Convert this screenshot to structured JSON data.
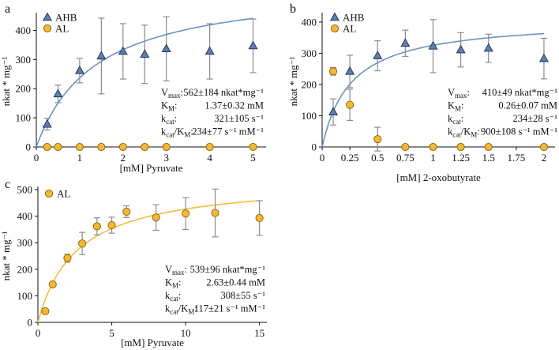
{
  "colors": {
    "ahb_fill": "#5b7fb0",
    "ahb_stroke": "#1f2d45",
    "al_fill": "#f4b934",
    "al_stroke": "#8a5e06",
    "ahb_curve": "#6a93c4",
    "al_curve": "#f1be3c",
    "error_bar": "#8c8c8c",
    "axis": "#111111"
  },
  "chart_data": [
    {
      "panel": "a",
      "type": "scatter",
      "xlabel": "[mM] Pyruvate",
      "ylabel": "nkat * mg⁻¹",
      "xlim": [
        0,
        5.3
      ],
      "ylim": [
        0,
        450
      ],
      "xticks": [
        0,
        1,
        2,
        3,
        4,
        5
      ],
      "yticks": [
        0,
        100,
        200,
        300,
        400
      ],
      "xtick_labels": [
        "0",
        "1",
        "2",
        "3",
        "4",
        "5"
      ],
      "ytick_labels": [
        "0",
        "100",
        "200",
        "300",
        "400"
      ],
      "legend": [
        "AHB",
        "AL"
      ],
      "series": [
        {
          "name": "AHB",
          "marker": "triangle",
          "x": [
            0.25,
            0.5,
            1.0,
            1.5,
            2.0,
            2.5,
            3.0,
            4.0,
            5.0
          ],
          "y": [
            78,
            182,
            262,
            312,
            328,
            318,
            337,
            328,
            347
          ],
          "err": [
            20,
            30,
            42,
            130,
            95,
            100,
            110,
            95,
            92
          ],
          "fit": {
            "vmax": 562,
            "km": 1.37
          }
        },
        {
          "name": "AL",
          "marker": "circle",
          "x": [
            0.25,
            0.5,
            1.0,
            1.5,
            2.0,
            2.5,
            3.0,
            4.0,
            5.0
          ],
          "y": [
            0,
            0,
            0,
            0,
            0,
            0,
            0,
            0,
            0
          ],
          "err": [
            0,
            0,
            0,
            0,
            0,
            0,
            0,
            0,
            0
          ]
        }
      ],
      "annotations": [
        {
          "label": "V",
          "sub": "max",
          "value": "562±184 nkat*mg⁻¹"
        },
        {
          "label": "K",
          "sub": "M",
          "value": "1.37±0.32 mM"
        },
        {
          "label": "k",
          "sub": "cat",
          "value": "321±105 s⁻¹"
        },
        {
          "label": "k",
          "sub": "cat",
          "label2": "/K",
          "sub2": "M",
          "value": "234±77 s⁻¹ mM⁻¹"
        }
      ]
    },
    {
      "panel": "b",
      "type": "scatter",
      "xlabel": "[mM] 2-oxobutyrate",
      "ylabel": "nkat * mg⁻¹",
      "xlim": [
        0,
        2.1
      ],
      "ylim": [
        0,
        420
      ],
      "xticks": [
        0,
        0.25,
        0.5,
        0.75,
        1.0,
        1.25,
        1.5,
        1.75,
        2.0
      ],
      "yticks": [
        0,
        100,
        200,
        300,
        400
      ],
      "xtick_labels": [
        "0",
        "0.25",
        "0.5",
        "0.75",
        "1",
        "1.25",
        "1.5",
        "1.75",
        "2"
      ],
      "ytick_labels": [
        "0",
        "100",
        "200",
        "300",
        "400"
      ],
      "legend": [
        "AHB",
        "AL"
      ],
      "series": [
        {
          "name": "AHB",
          "marker": "triangle",
          "x": [
            0.1,
            0.25,
            0.5,
            0.75,
            1.0,
            1.25,
            1.5,
            2.0
          ],
          "y": [
            112,
            242,
            292,
            332,
            323,
            311,
            316,
            283
          ],
          "err": [
            42,
            52,
            48,
            42,
            85,
            55,
            45,
            65
          ],
          "fit": {
            "vmax": 410,
            "km": 0.26
          }
        },
        {
          "name": "AL",
          "marker": "circle",
          "x": [
            0.1,
            0.25,
            0.5,
            0.75,
            1.0,
            1.25,
            1.5,
            2.0
          ],
          "y": [
            242,
            135,
            25,
            0,
            0,
            0,
            0,
            0
          ],
          "err": [
            12,
            50,
            38,
            0,
            0,
            0,
            0,
            0
          ]
        }
      ],
      "annotations": [
        {
          "label": "V",
          "sub": "max",
          "value": "410±49 nkat*mg⁻¹"
        },
        {
          "label": "K",
          "sub": "M",
          "value": "0.26±0.07 mM"
        },
        {
          "label": "k",
          "sub": "cat",
          "value": "234±28 s⁻¹"
        },
        {
          "label": "k",
          "sub": "cat",
          "label2": "/K",
          "sub2": "M",
          "value": "900±108 s⁻¹ mM⁻¹"
        }
      ]
    },
    {
      "panel": "c",
      "type": "scatter",
      "xlabel": "[mM] Pyruvate",
      "ylabel": "nkat * mg⁻¹",
      "xlim": [
        0,
        15.5
      ],
      "ylim": [
        0,
        500
      ],
      "xticks": [
        0,
        5,
        10,
        15
      ],
      "yticks": [
        0,
        100,
        200,
        300,
        400,
        500
      ],
      "xtick_labels": [
        "0",
        "5",
        "10",
        "15"
      ],
      "ytick_labels": [
        "0",
        "100",
        "200",
        "300",
        "400",
        "500"
      ],
      "legend": [
        "AL"
      ],
      "series": [
        {
          "name": "AL",
          "marker": "circle",
          "x": [
            0.5,
            1,
            2,
            3,
            4,
            5,
            6,
            8,
            10,
            12,
            15
          ],
          "y": [
            42,
            143,
            242,
            297,
            362,
            366,
            417,
            395,
            410,
            412,
            393
          ],
          "err": [
            0,
            0,
            15,
            42,
            32,
            30,
            22,
            48,
            60,
            90,
            65
          ],
          "fit": {
            "vmax": 539,
            "km": 2.63
          }
        }
      ],
      "annotations": [
        {
          "label": "V",
          "sub": "max",
          "value": "539±96 nkat*mg⁻¹"
        },
        {
          "label": "K",
          "sub": "M",
          "value": "2.63±0.44 mM"
        },
        {
          "label": "k",
          "sub": "cat",
          "value": "308±55 s⁻¹"
        },
        {
          "label": "k",
          "sub": "cat",
          "label2": "/K",
          "sub2": "M",
          "value": "117±21 s⁻¹ mM⁻¹"
        }
      ]
    }
  ]
}
